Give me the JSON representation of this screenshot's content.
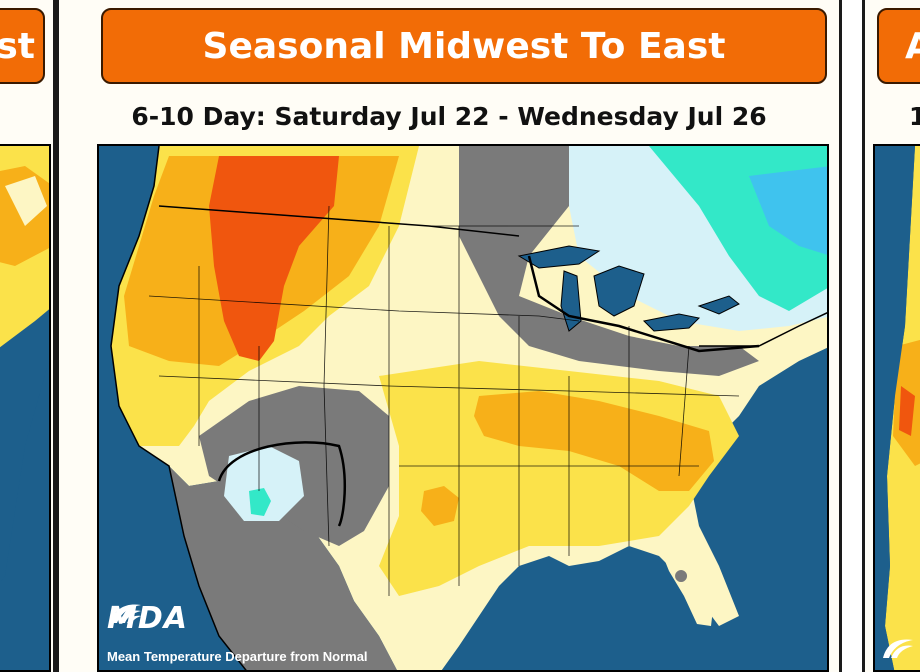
{
  "main_panel": {
    "title": "Seasonal Midwest To East",
    "subtitle": "6-10 Day: Saturday Jul 22 - Wednesday Jul 26",
    "brand": "MDA",
    "caption": "Mean Temperature Departure from Normal"
  },
  "left_panel": {
    "title_fragment": "st"
  },
  "right_panel": {
    "title_fragment": "A",
    "subtitle_fragment": "1"
  },
  "colors": {
    "ocean": "#1d5f8c",
    "header_orange": "#f26c06",
    "near_normal_gray": "#7a7a7a",
    "slightly_above_pale_yellow": "#fdf6c4",
    "above_yellow": "#fbe24a",
    "warm_orange": "#f7b019",
    "hot_red_orange": "#f0560e",
    "cool_light_blue": "#d6f2f8",
    "cool_aqua": "#33e8c8",
    "cool_sky_blue": "#3fc3ee"
  }
}
